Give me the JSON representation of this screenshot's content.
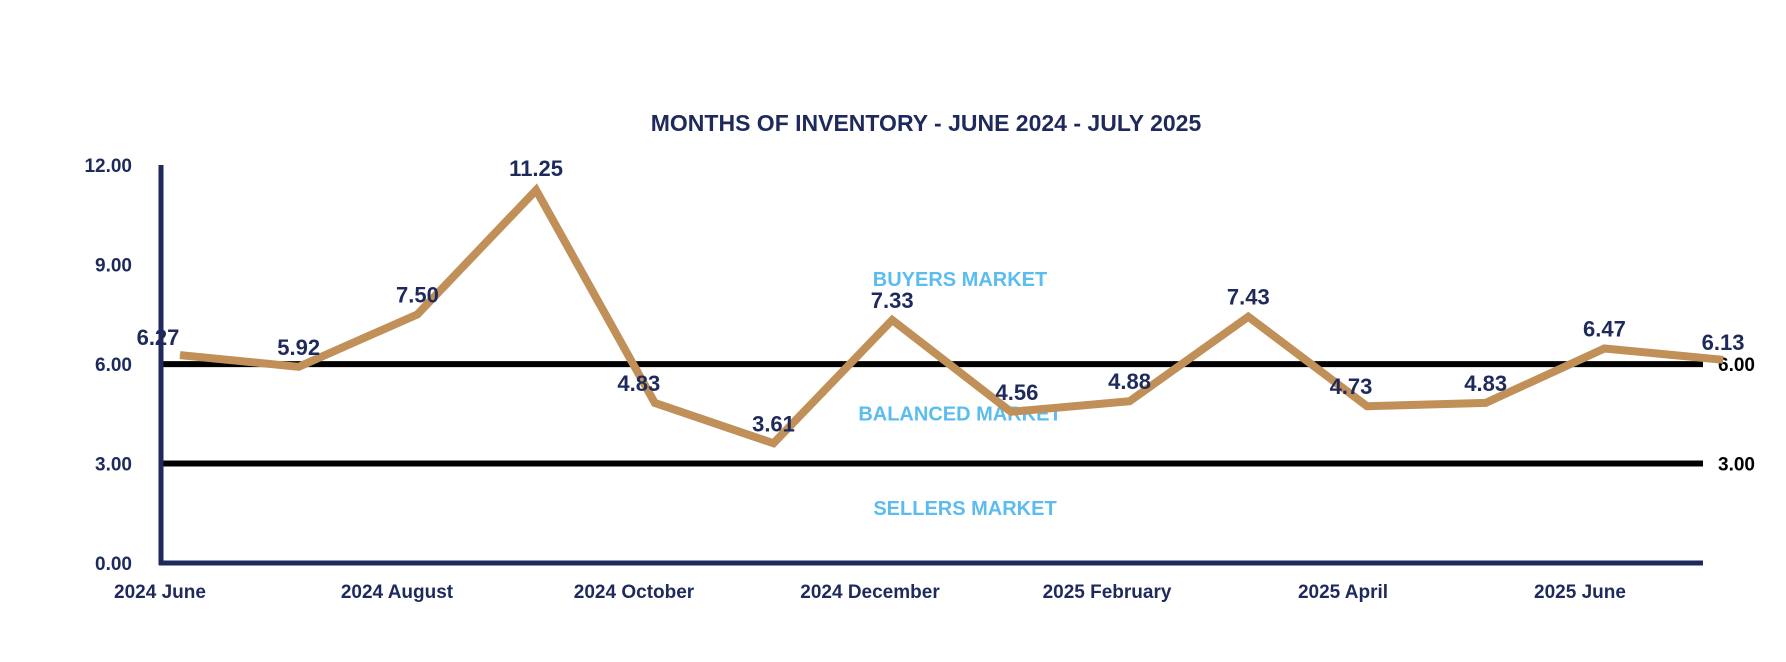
{
  "chart_data": {
    "type": "line",
    "title": "MONTHS OF INVENTORY - JUNE 2024 - JULY 2025",
    "xlabel": "",
    "ylabel": "",
    "ylim": [
      0,
      12
    ],
    "yticks": [
      "0.00",
      "3.00",
      "6.00",
      "9.00",
      "12.00"
    ],
    "ytick_values": [
      0,
      3,
      6,
      9,
      12
    ],
    "x_tick_labels": [
      "2024 June",
      "2024 August",
      "2024 October",
      "2024 December",
      "2025 February",
      "2025 April",
      "2025 June"
    ],
    "series": [
      {
        "values": [
          6.27,
          5.92,
          7.5,
          11.25,
          4.83,
          3.61,
          7.33,
          4.56,
          4.88,
          7.43,
          4.73,
          4.83,
          6.47,
          6.13
        ],
        "labels": [
          "6.27",
          "5.92",
          "7.50",
          "11.25",
          "4.83",
          "3.61",
          "7.33",
          "4.56",
          "4.88",
          "7.43",
          "4.73",
          "4.83",
          "6.47",
          "6.13"
        ],
        "color": "#c09058"
      }
    ],
    "reference_lines": [
      {
        "value": 6,
        "label": "6.00"
      },
      {
        "value": 3,
        "label": "3.00"
      }
    ],
    "zones": [
      "BUYERS MARKET",
      "BALANCED MARKET",
      "SELLERS MARKET"
    ],
    "grid": false,
    "legend": "none",
    "colors": {
      "line": "#c09058",
      "axis": "#1f2a5c",
      "text": "#1f2a5c",
      "zone_text": "#5bbcf0",
      "reference": "#000000"
    }
  }
}
